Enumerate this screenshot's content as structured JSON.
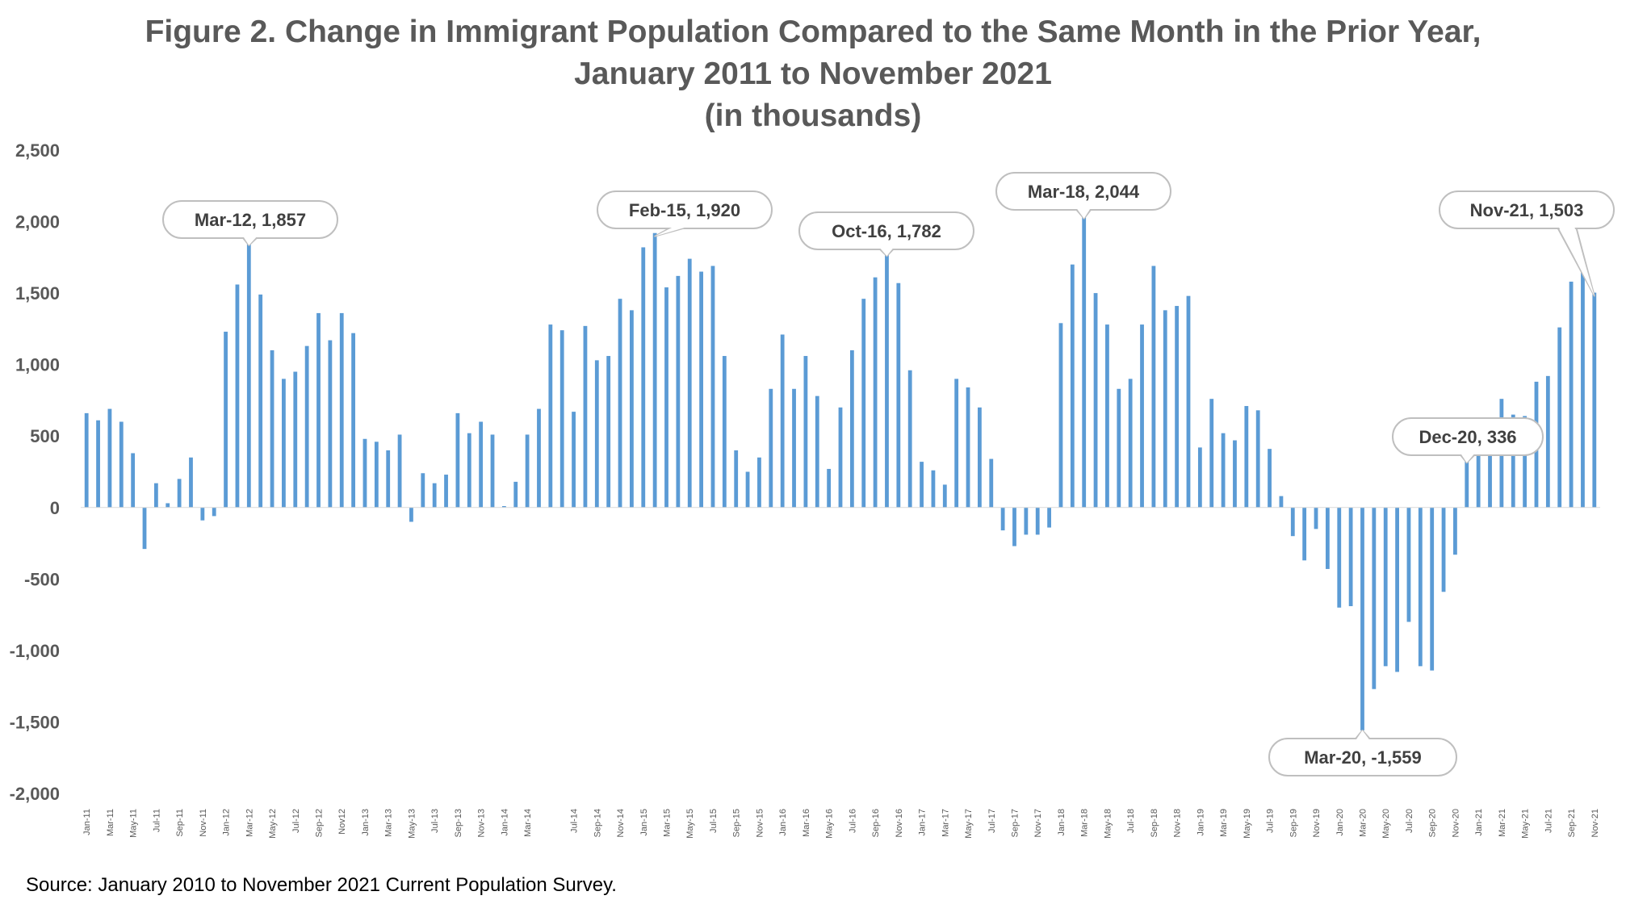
{
  "title_lines": [
    "Figure 2. Change in Immigrant Population Compared to the Same Month in the Prior Year,",
    "January 2011 to November 2021",
    "(in thousands)"
  ],
  "source": "Source: January 2010 to November 2021 Current Population Survey.",
  "colors": {
    "bar": "#5b9bd5",
    "axis_text": "#595959",
    "title": "#595959",
    "callout_border": "#bfbfbf"
  },
  "chart_data": {
    "type": "bar",
    "ylim": [
      -2000,
      2500
    ],
    "yticks": [
      2500,
      2000,
      1500,
      1000,
      500,
      0,
      -500,
      -1000,
      -1500,
      -2000
    ],
    "ytick_labels": [
      "2,500",
      "2,000",
      "1,500",
      "1,000",
      "500",
      "0",
      "-500",
      "-1,000",
      "-1,500",
      "-2,000"
    ],
    "grid": false,
    "legend": "none",
    "categories": [
      "Jan-11",
      "Feb-11",
      "Mar-11",
      "Apr-11",
      "May-11",
      "Jun-11",
      "Jul-11",
      "Aug-11",
      "Sep-11",
      "Oct-11",
      "Nov-11",
      "Dec-11",
      "Jan-12",
      "Feb-12",
      "Mar-12",
      "Apr-12",
      "May-12",
      "Jun-12",
      "Jul-12",
      "Aug-12",
      "Sep-12",
      "Oct-12",
      "Nov-12",
      "Dec-12",
      "Jan-13",
      "Feb-13",
      "Mar-13",
      "Apr-13",
      "May-13",
      "Jun-13",
      "Jul-13",
      "Aug-13",
      "Sep-13",
      "Oct-13",
      "Nov-13",
      "Dec-13",
      "Jan-14",
      "Feb-14",
      "Mar-14",
      "Apr-14",
      "May-14",
      "Jun-14",
      "Jul-14",
      "Aug-14",
      "Sep-14",
      "Oct-14",
      "Nov-14",
      "Dec-14",
      "Jan-15",
      "Feb-15",
      "Mar-15",
      "Apr-15",
      "May-15",
      "Jun-15",
      "Jul-15",
      "Aug-15",
      "Sep-15",
      "Oct-15",
      "Nov-15",
      "Dec-15",
      "Jan-16",
      "Feb-16",
      "Mar-16",
      "Apr-16",
      "May-16",
      "Jun-16",
      "Jul-16",
      "Aug-16",
      "Sep-16",
      "Oct-16",
      "Nov-16",
      "Dec-16",
      "Jan-17",
      "Feb-17",
      "Mar-17",
      "Apr-17",
      "May-17",
      "Jun-17",
      "Jul-17",
      "Aug-17",
      "Sep-17",
      "Oct-17",
      "Nov-17",
      "Dec-17",
      "Jan-18",
      "Feb-18",
      "Mar-18",
      "Apr-18",
      "May-18",
      "Jun-18",
      "Jul-18",
      "Aug-18",
      "Sep-18",
      "Oct-18",
      "Nov-18",
      "Dec-18",
      "Jan-19",
      "Feb-19",
      "Mar-19",
      "Apr-19",
      "May-19",
      "Jun-19",
      "Jul-19",
      "Aug-19",
      "Sep-19",
      "Oct-19",
      "Nov-19",
      "Dec-19",
      "Jan-20",
      "Feb-20",
      "Mar-20",
      "Apr-20",
      "May-20",
      "Jun-20",
      "Jul-20",
      "Aug-20",
      "Sep-20",
      "Oct-20",
      "Nov-20",
      "Dec-20",
      "Jan-21",
      "Feb-21",
      "Mar-21",
      "Apr-21",
      "May-21",
      "Jun-21",
      "Jul-21",
      "Aug-21",
      "Sep-21",
      "Oct-21",
      "Nov-21"
    ],
    "tick_labels": [
      "Jan-11",
      "Mar-11",
      "May-11",
      "Jul-11",
      "Sep-11",
      "Nov-11",
      "Jan-12",
      "Mar-12",
      "May-12",
      "Jul-12",
      "Sep-12",
      "Nov12",
      "Jan-13",
      "Mar-13",
      "May-13",
      "Jul-13",
      "Sep-13",
      "Nov-13",
      "Jan-14",
      "Mar-14",
      "Jul-14",
      "Sep-14",
      "Nov-14",
      "Jan-15",
      "Mar-15",
      "May-15",
      "Jul-15",
      "Sep-15",
      "Nov-15",
      "Jan-16",
      "Mar-16",
      "May-16",
      "Jul-16",
      "Sep-16",
      "Nov-16",
      "Jan-17",
      "Mar-17",
      "May-17",
      "Jul-17",
      "Sep-17",
      "Nov-17",
      "Jan-18",
      "Mar-18",
      "May-18",
      "Jul-18",
      "Sep-18",
      "Nov-18",
      "Jan-19",
      "Mar-19",
      "May-19",
      "Jul-19",
      "Sep-19",
      "Nov-19",
      "Jan-20",
      "Mar-20",
      "May-20",
      "Jul-20",
      "Sep-20",
      "Nov-20",
      "Jan-21",
      "Mar-21",
      "May-21",
      "Jul-21",
      "Sep-21",
      "Nov-21"
    ],
    "tick_label_months": [
      "Jan-11",
      "Mar-11",
      "May-11",
      "Jul-11",
      "Sep-11",
      "Nov-11",
      "Jan-12",
      "Mar-12",
      "May-12",
      "Jul-12",
      "Sep-12",
      "Nov-12",
      "Jan-13",
      "Mar-13",
      "May-13",
      "Jul-13",
      "Sep-13",
      "Nov-13",
      "Jan-14",
      "Mar-14",
      "Jul-14",
      "Sep-14",
      "Nov-14",
      "Jan-15",
      "Mar-15",
      "May-15",
      "Jul-15",
      "Sep-15",
      "Nov-15",
      "Jan-16",
      "Mar-16",
      "May-16",
      "Jul-16",
      "Sep-16",
      "Nov-16",
      "Jan-17",
      "Mar-17",
      "May-17",
      "Jul-17",
      "Sep-17",
      "Nov-17",
      "Jan-18",
      "Mar-18",
      "May-18",
      "Jul-18",
      "Sep-18",
      "Nov-18",
      "Jan-19",
      "Mar-19",
      "May-19",
      "Jul-19",
      "Sep-19",
      "Nov-19",
      "Jan-20",
      "Mar-20",
      "May-20",
      "Jul-20",
      "Sep-20",
      "Nov-20",
      "Jan-21",
      "Mar-21",
      "May-21",
      "Jul-21",
      "Sep-21",
      "Nov-21"
    ],
    "values": [
      660,
      610,
      690,
      600,
      380,
      -290,
      170,
      30,
      200,
      350,
      -90,
      -60,
      1230,
      1560,
      1857,
      1490,
      1100,
      900,
      950,
      1130,
      1360,
      1170,
      1360,
      1220,
      480,
      460,
      400,
      510,
      -100,
      240,
      170,
      230,
      660,
      520,
      600,
      510,
      10,
      180,
      510,
      690,
      1280,
      1240,
      670,
      1270,
      1030,
      1060,
      1460,
      1380,
      1820,
      1920,
      1540,
      1620,
      1740,
      1650,
      1690,
      1060,
      400,
      250,
      350,
      830,
      1210,
      830,
      1060,
      780,
      270,
      700,
      1100,
      1460,
      1610,
      1782,
      1570,
      960,
      320,
      260,
      160,
      900,
      840,
      700,
      340,
      -160,
      -270,
      -190,
      -190,
      -140,
      1290,
      1700,
      2044,
      1500,
      1280,
      830,
      900,
      1280,
      1690,
      1380,
      1410,
      1480,
      420,
      760,
      520,
      470,
      710,
      680,
      410,
      80,
      -200,
      -370,
      -150,
      -430,
      -700,
      -690,
      -1559,
      -1270,
      -1110,
      -1150,
      -800,
      -1110,
      -1140,
      -590,
      -330,
      336,
      420,
      620,
      760,
      650,
      640,
      880,
      920,
      1260,
      1580,
      1750,
      1503
    ],
    "annotations": [
      {
        "month": "Mar-12",
        "label": "Mar-12, 1,857"
      },
      {
        "month": "Feb-15",
        "label": "Feb-15, 1,920"
      },
      {
        "month": "Oct-16",
        "label": "Oct-16, 1,782"
      },
      {
        "month": "Mar-18",
        "label": "Mar-18, 2,044"
      },
      {
        "month": "Mar-20",
        "label": "Mar-20, -1,559"
      },
      {
        "month": "Dec-20",
        "label": "Dec-20, 336"
      },
      {
        "month": "Nov-21",
        "label": "Nov-21, 1,503"
      }
    ]
  }
}
